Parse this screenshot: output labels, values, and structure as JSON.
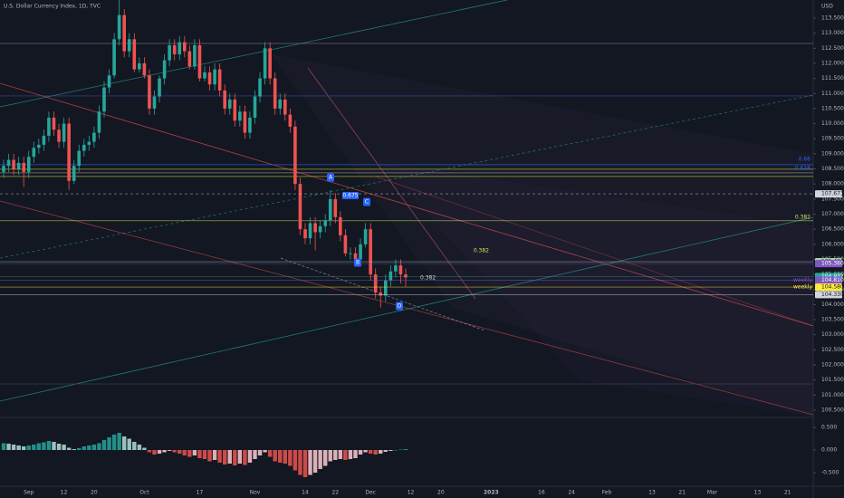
{
  "chart_data": [
    {
      "type": "candlestick",
      "title": "U.S. Dollar Currency Index, 1D, TVC",
      "currency": "USD",
      "categories": [
        null,
        null,
        null,
        null,
        null,
        "Sep",
        null,
        null,
        null,
        null,
        null,
        null,
        "12",
        null,
        null,
        null,
        null,
        null,
        "20",
        null,
        null,
        null,
        null,
        null,
        null,
        null,
        null,
        null,
        "Oct",
        null,
        null,
        null,
        null,
        null,
        null,
        null,
        null,
        null,
        null,
        "17",
        null,
        null,
        null,
        null,
        null,
        null,
        null,
        null,
        null,
        null,
        "Nov",
        null,
        null,
        null,
        null,
        null,
        null,
        null,
        null,
        null,
        "14",
        null,
        null,
        null,
        null,
        null,
        "22",
        null,
        null,
        null,
        null,
        null,
        null,
        "Dec",
        null,
        null,
        null,
        null,
        null,
        null,
        null,
        "12",
        null,
        null,
        null,
        null,
        null,
        "20",
        null,
        null,
        null,
        null,
        null,
        null,
        null,
        null,
        null,
        "2023",
        null,
        null,
        null,
        null,
        null,
        null,
        null,
        null,
        null,
        "16",
        null,
        null,
        null,
        null,
        null,
        "24",
        null,
        null,
        null,
        null,
        null,
        null,
        "Feb",
        null,
        null,
        null,
        null,
        null,
        null,
        null,
        null,
        "13",
        null,
        null,
        null,
        null,
        null,
        "21",
        null,
        null,
        null,
        null,
        null,
        "Mar",
        null,
        null,
        null,
        null,
        null,
        null,
        null,
        null,
        "13",
        null,
        null,
        null,
        null,
        null,
        "21"
      ],
      "open": [
        108.4,
        108.6,
        108.8,
        108.5,
        108.7,
        108.4,
        108.9,
        109.2,
        109.3,
        109.6,
        110.2,
        109.8,
        109.4,
        110.0,
        108.1,
        108.6,
        109.1,
        109.3,
        109.4,
        109.7,
        110.4,
        111.2,
        111.6,
        112.8,
        113.6,
        112.4,
        112.8,
        111.8,
        112.0,
        111.6,
        110.5,
        110.9,
        111.5,
        112.1,
        112.6,
        112.3,
        112.7,
        112.4,
        111.9,
        112.6,
        111.5,
        111.7,
        111.3,
        111.8,
        111.1,
        110.5,
        110.8,
        110.1,
        110.4,
        109.7,
        110.2,
        110.9,
        111.5,
        112.5,
        111.5,
        110.5,
        110.8,
        110.3,
        109.9,
        108.0,
        106.5,
        106.2,
        106.7,
        106.4,
        106.6,
        106.8,
        107.5,
        106.9,
        106.3,
        105.7,
        105.7,
        105.5,
        106.0,
        106.5,
        105.0,
        104.4,
        104.3,
        104.8,
        105.1,
        105.3,
        105.0,
        null,
        null,
        null,
        null,
        null,
        null,
        null,
        null,
        null,
        null,
        null,
        null,
        null,
        null,
        null,
        null,
        null,
        null,
        null,
        null,
        null,
        null,
        null,
        null,
        null,
        null,
        null,
        null,
        null,
        null,
        null,
        null,
        null,
        null,
        null,
        null,
        null,
        null,
        null,
        null,
        null,
        null,
        null,
        null,
        null,
        null,
        null,
        null,
        null,
        null,
        null,
        null,
        null,
        null,
        null,
        null,
        null,
        null,
        null,
        null,
        null,
        null,
        null,
        null,
        null,
        null,
        null,
        null,
        null,
        null,
        null,
        null,
        null,
        null,
        null,
        null
      ],
      "high": [
        108.8,
        109.0,
        109.0,
        108.9,
        108.9,
        109.1,
        109.4,
        109.5,
        109.8,
        110.4,
        110.4,
        110.0,
        110.2,
        110.2,
        108.8,
        109.3,
        109.5,
        109.6,
        109.9,
        110.6,
        111.4,
        111.8,
        113.0,
        114.3,
        113.8,
        113.0,
        113.0,
        112.2,
        112.2,
        111.8,
        111.1,
        111.6,
        112.3,
        112.8,
        112.8,
        112.9,
        112.9,
        112.6,
        112.8,
        112.8,
        111.9,
        111.9,
        112.0,
        112.0,
        111.3,
        111.0,
        111.0,
        110.6,
        110.6,
        110.4,
        111.1,
        111.7,
        112.7,
        112.7,
        111.7,
        111.0,
        111.0,
        110.5,
        110.1,
        108.2,
        106.7,
        106.9,
        106.9,
        106.8,
        107.0,
        107.8,
        107.7,
        107.1,
        106.5,
        105.9,
        105.9,
        106.2,
        106.7,
        106.7,
        105.2,
        104.6,
        105.0,
        105.3,
        105.5,
        105.5,
        105.2,
        null,
        null,
        null,
        null,
        null,
        null,
        null,
        null,
        null,
        null,
        null,
        null,
        null,
        null,
        null,
        null,
        null,
        null,
        null,
        null,
        null,
        null,
        null,
        null,
        null,
        null,
        null,
        null,
        null,
        null,
        null,
        null,
        null,
        null,
        null,
        null,
        null,
        null,
        null,
        null,
        null,
        null,
        null,
        null,
        null,
        null,
        null,
        null,
        null,
        null,
        null,
        null,
        null,
        null,
        null,
        null,
        null,
        null,
        null,
        null,
        null,
        null,
        null,
        null,
        null,
        null,
        null,
        null,
        null,
        null,
        null,
        null,
        null,
        null,
        null,
        null
      ],
      "low": [
        108.2,
        108.4,
        108.3,
        108.3,
        107.9,
        108.2,
        108.7,
        109.0,
        109.1,
        109.4,
        109.6,
        109.2,
        109.2,
        107.8,
        108.0,
        108.4,
        108.9,
        109.1,
        109.2,
        109.5,
        110.2,
        111.0,
        111.5,
        112.6,
        112.2,
        112.2,
        111.7,
        111.7,
        111.5,
        110.3,
        110.3,
        110.7,
        111.3,
        111.9,
        112.1,
        112.1,
        112.2,
        111.8,
        111.8,
        111.4,
        111.4,
        111.1,
        111.1,
        110.9,
        110.3,
        110.3,
        109.9,
        109.9,
        109.5,
        109.5,
        110.0,
        110.7,
        111.3,
        111.3,
        110.3,
        110.3,
        110.1,
        109.7,
        107.8,
        106.3,
        106.0,
        106.0,
        105.8,
        106.2,
        106.4,
        106.6,
        106.7,
        106.1,
        105.6,
        105.5,
        105.3,
        105.3,
        105.9,
        104.8,
        104.2,
        103.9,
        104.1,
        104.6,
        104.9,
        104.7,
        104.6,
        null,
        null,
        null,
        null,
        null,
        null,
        null,
        null,
        null,
        null,
        null,
        null,
        null,
        null,
        null,
        null,
        null,
        null,
        null,
        null,
        null,
        null,
        null,
        null,
        null,
        null,
        null,
        null,
        null,
        null,
        null,
        null,
        null,
        null,
        null,
        null,
        null,
        null,
        null,
        null,
        null,
        null,
        null,
        null,
        null,
        null,
        null,
        null,
        null,
        null,
        null,
        null,
        null,
        null,
        null,
        null,
        null,
        null,
        null,
        null,
        null,
        null,
        null,
        null,
        null,
        null,
        null,
        null,
        null,
        null,
        null,
        null,
        null,
        null,
        null,
        null
      ],
      "close": [
        108.6,
        108.8,
        108.5,
        108.7,
        108.4,
        108.9,
        109.2,
        109.3,
        109.6,
        110.2,
        109.8,
        109.4,
        110.0,
        108.1,
        108.6,
        109.1,
        109.3,
        109.4,
        109.7,
        110.4,
        111.2,
        111.6,
        112.8,
        113.6,
        112.4,
        112.8,
        111.8,
        112.0,
        111.6,
        110.5,
        110.9,
        111.5,
        112.1,
        112.6,
        112.3,
        112.7,
        112.4,
        111.9,
        112.6,
        111.5,
        111.7,
        111.3,
        111.8,
        111.1,
        110.5,
        110.8,
        110.1,
        110.4,
        109.7,
        110.2,
        110.9,
        111.5,
        112.5,
        111.5,
        110.5,
        110.8,
        110.3,
        109.9,
        108.0,
        106.5,
        106.2,
        106.7,
        106.4,
        106.6,
        106.8,
        107.5,
        106.9,
        106.3,
        105.7,
        105.7,
        105.5,
        106.0,
        106.5,
        105.0,
        104.4,
        104.3,
        104.8,
        105.1,
        105.3,
        105.0,
        104.9,
        null,
        null,
        null,
        null,
        null,
        null,
        null,
        null,
        null,
        null,
        null,
        null,
        null,
        null,
        null,
        null,
        null,
        null,
        null,
        null,
        null,
        null,
        null,
        null,
        null,
        null,
        null,
        null,
        null,
        null,
        null,
        null,
        null,
        null,
        null,
        null,
        null,
        null,
        null,
        null,
        null,
        null,
        null,
        null,
        null,
        null,
        null,
        null,
        null,
        null,
        null,
        null,
        null,
        null,
        null,
        null,
        null,
        null,
        null,
        null,
        null,
        null,
        null,
        null,
        null,
        null,
        null,
        null,
        null,
        null,
        null,
        null,
        null,
        null,
        null,
        null
      ],
      "up_color": "#26a69a",
      "down_color": "#ef5350",
      "ylim": [
        100.29,
        114.1
      ],
      "yticks": [
        {
          "value": 100.5,
          "label": "100.500"
        },
        {
          "value": 101,
          "label": "101.000"
        },
        {
          "value": 101.5,
          "label": "101.500"
        },
        {
          "value": 102,
          "label": "102.000"
        },
        {
          "value": 102.5,
          "label": "102.500"
        },
        {
          "value": 103,
          "label": "103.000"
        },
        {
          "value": 103.5,
          "label": "103.500"
        },
        {
          "value": 104,
          "label": "104.000"
        },
        {
          "value": 104.5,
          "label": "104.500"
        },
        {
          "value": 105,
          "label": "105.000"
        },
        {
          "value": 105.5,
          "label": "105.500"
        },
        {
          "value": 106,
          "label": "106.000"
        },
        {
          "value": 106.5,
          "label": "106.500"
        },
        {
          "value": 107,
          "label": "107.000"
        },
        {
          "value": 107.5,
          "label": "107.500"
        },
        {
          "value": 108,
          "label": "108.000"
        },
        {
          "value": 108.5,
          "label": "108.500"
        },
        {
          "value": 109,
          "label": "109.000"
        },
        {
          "value": 109.5,
          "label": "109.500"
        },
        {
          "value": 110,
          "label": "110.000"
        },
        {
          "value": 110.5,
          "label": "110.500"
        },
        {
          "value": 111,
          "label": "111.000"
        },
        {
          "value": 111.5,
          "label": "111.500"
        },
        {
          "value": 112,
          "label": "112.000"
        },
        {
          "value": 112.5,
          "label": "112.500"
        },
        {
          "value": 113,
          "label": "113.000"
        },
        {
          "value": 113.5,
          "label": "113.500"
        }
      ],
      "grid": false,
      "levels": [
        {
          "value": 112.66,
          "color": "#787b86"
        },
        {
          "value": 110.92,
          "color": "#3f51b5"
        },
        {
          "value": 108.64,
          "color": "#2962ff"
        },
        {
          "value": 108.49,
          "color": "#c0ca33"
        },
        {
          "value": 108.37,
          "color": "#9e9e9e"
        },
        {
          "value": 108.25,
          "color": "#c0ca33"
        },
        {
          "value": 106.78,
          "color": "#d4e157"
        },
        {
          "value": 101.37,
          "color": "#434651"
        }
      ],
      "price_tags": [
        {
          "value": 107.673,
          "label": "107.673",
          "color": "#d1d4dc"
        },
        {
          "value": 105.423,
          "label": "105.423",
          "color": "#a5d6a7"
        },
        {
          "value": 105.36,
          "label": "105.360",
          "color": "#7e57c2"
        },
        {
          "value": 104.932,
          "label": "104.932",
          "color": "#26a69a"
        },
        {
          "value": 104.81,
          "label": "104.810",
          "color": "#7e57c2",
          "note": "weekly"
        },
        {
          "value": 104.58,
          "label": "104.580",
          "color": "#ffeb3b",
          "note": "weekly"
        },
        {
          "value": 104.33,
          "label": "104.330",
          "color": "#d1d4dc"
        }
      ],
      "fib_labels": [
        {
          "label": "0.66",
          "color": "#2962ff"
        },
        {
          "label": "0.618",
          "color": "#2962ff"
        },
        {
          "label": "0.382",
          "color": "#d4e157"
        },
        {
          "label": "0.382",
          "color": "#d4e157"
        },
        {
          "label": "0.382",
          "color": "#d1d4dc"
        },
        {
          "label": "0.675",
          "color": "#2962ff"
        }
      ],
      "annotations": [
        {
          "label": "A"
        },
        {
          "label": "B"
        },
        {
          "label": "C"
        },
        {
          "label": "D"
        }
      ]
    },
    {
      "type": "macd",
      "values": [
        0.15,
        0.14,
        0.12,
        0.1,
        0.08,
        0.1,
        0.12,
        0.15,
        0.17,
        0.2,
        0.18,
        0.14,
        0.12,
        0.05,
        0.02,
        0.04,
        0.08,
        0.1,
        0.12,
        0.15,
        0.22,
        0.28,
        0.34,
        0.38,
        0.3,
        0.25,
        0.18,
        0.12,
        0.05,
        -0.05,
        -0.1,
        -0.08,
        -0.05,
        -0.02,
        -0.05,
        -0.08,
        -0.12,
        -0.15,
        -0.12,
        -0.18,
        -0.2,
        -0.25,
        -0.22,
        -0.28,
        -0.32,
        -0.3,
        -0.34,
        -0.3,
        -0.33,
        -0.28,
        -0.2,
        -0.12,
        -0.05,
        -0.15,
        -0.25,
        -0.28,
        -0.3,
        -0.35,
        -0.45,
        -0.55,
        -0.6,
        -0.55,
        -0.5,
        -0.42,
        -0.35,
        -0.25,
        -0.22,
        -0.2,
        -0.22,
        -0.2,
        -0.18,
        -0.1,
        -0.05,
        -0.08,
        -0.1,
        -0.08,
        -0.04,
        -0.02,
        0.0,
        0.01,
        0.02,
        null,
        null,
        null,
        null,
        null,
        null,
        null,
        null,
        null,
        null,
        null,
        null,
        null,
        null,
        null,
        null,
        null,
        null,
        null,
        null,
        null,
        null,
        null,
        null,
        null,
        null,
        null,
        null,
        null,
        null,
        null,
        null,
        null,
        null,
        null,
        null,
        null,
        null,
        null,
        null,
        null,
        null,
        null,
        null,
        null,
        null,
        null,
        null,
        null,
        null,
        null,
        null,
        null,
        null,
        null,
        null,
        null,
        null,
        null,
        null,
        null,
        null,
        null,
        null,
        null,
        null,
        null,
        null,
        null,
        null,
        null,
        null,
        null,
        null,
        null,
        null
      ],
      "colors": [
        "#26a69a",
        "#b2dfdb",
        "#ef5350",
        "#ffcdd2"
      ],
      "ylim": [
        -0.76,
        0.68
      ],
      "yticks": [
        {
          "value": 0.5,
          "label": "0.500"
        },
        {
          "value": 0,
          "label": "0.000"
        },
        {
          "value": -0.5,
          "label": "-0.500"
        }
      ]
    }
  ]
}
